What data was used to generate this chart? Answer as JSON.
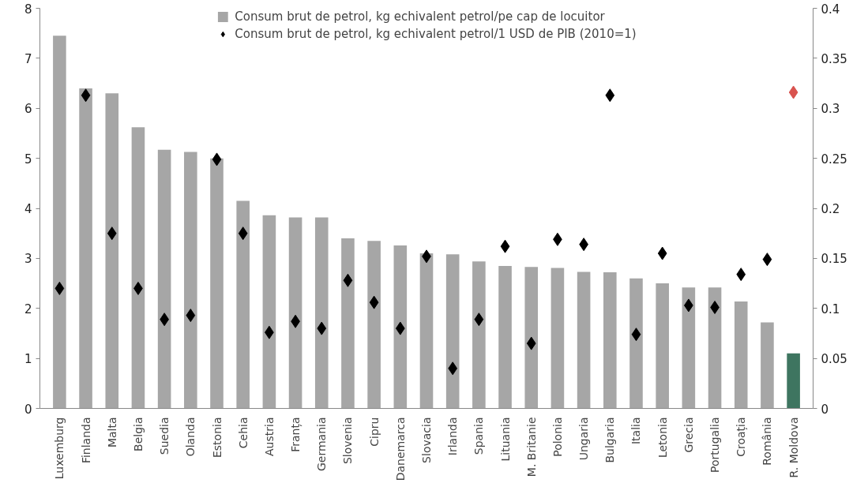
{
  "chart_data": {
    "type": "bar",
    "categories": [
      "Luxemburg",
      "Finlanda",
      "Malta",
      "Belgia",
      "Suedia",
      "Olanda",
      "Estonia",
      "Cehia",
      "Austria",
      "Franța",
      "Germania",
      "Slovenia",
      "Cipru",
      "Danemarca",
      "Slovacia",
      "Irlanda",
      "Spania",
      "Lituania",
      "M. Britanie",
      "Polonia",
      "Ungaria",
      "Bulgaria",
      "Italia",
      "Letonia",
      "Grecia",
      "Portugalia",
      "Croația",
      "România",
      "R. Moldova"
    ],
    "series": [
      {
        "name": "Consum brut de petrol, kg echivalent petrol/pe cap de locuitor",
        "colors": [
          "#a6a6a6",
          "#a6a6a6",
          "#a6a6a6",
          "#a6a6a6",
          "#a6a6a6",
          "#a6a6a6",
          "#a6a6a6",
          "#a6a6a6",
          "#a6a6a6",
          "#a6a6a6",
          "#a6a6a6",
          "#a6a6a6",
          "#a6a6a6",
          "#a6a6a6",
          "#a6a6a6",
          "#a6a6a6",
          "#a6a6a6",
          "#a6a6a6",
          "#a6a6a6",
          "#a6a6a6",
          "#a6a6a6",
          "#a6a6a6",
          "#a6a6a6",
          "#a6a6a6",
          "#a6a6a6",
          "#a6a6a6",
          "#a6a6a6",
          "#a6a6a6",
          "#3e7560"
        ],
        "values": [
          7.45,
          6.4,
          6.3,
          5.62,
          5.17,
          5.13,
          5.0,
          4.15,
          3.86,
          3.82,
          3.82,
          3.4,
          3.35,
          3.26,
          3.1,
          3.08,
          2.94,
          2.85,
          2.83,
          2.81,
          2.73,
          2.72,
          2.6,
          2.5,
          2.42,
          2.42,
          2.14,
          1.72,
          1.1
        ]
      },
      {
        "name": "Consum brut de petrol, kg echivalent petrol/1 USD de PIB (2010=1)",
        "type": "scatter",
        "axis": "y2",
        "marker": "diamond",
        "colors": [
          "#000000",
          "#000000",
          "#000000",
          "#000000",
          "#000000",
          "#000000",
          "#000000",
          "#000000",
          "#000000",
          "#000000",
          "#000000",
          "#000000",
          "#000000",
          "#000000",
          "#000000",
          "#000000",
          "#000000",
          "#000000",
          "#000000",
          "#000000",
          "#000000",
          "#000000",
          "#000000",
          "#000000",
          "#000000",
          "#000000",
          "#000000",
          "#000000",
          "#d9534f"
        ],
        "values": [
          0.12,
          0.313,
          0.175,
          0.12,
          0.089,
          0.093,
          0.249,
          0.175,
          0.076,
          0.087,
          0.08,
          0.128,
          0.106,
          0.08,
          0.152,
          0.04,
          0.089,
          0.162,
          0.065,
          0.169,
          0.164,
          0.313,
          0.074,
          0.155,
          0.103,
          0.101,
          0.134,
          0.149,
          0.316
        ]
      }
    ],
    "ylim": [
      0,
      8
    ],
    "yticks": [
      0,
      1,
      2,
      3,
      4,
      5,
      6,
      7,
      8
    ],
    "y2lim": [
      0,
      0.4
    ],
    "y2ticks": [
      0,
      0.05,
      0.1,
      0.15,
      0.2,
      0.25,
      0.3,
      0.35,
      0.4
    ],
    "legend": "top",
    "grid": false
  }
}
